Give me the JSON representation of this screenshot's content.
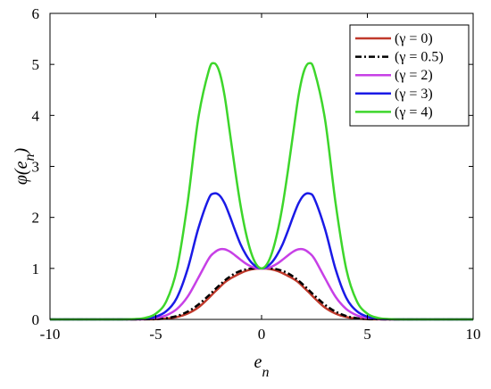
{
  "chart_data": {
    "type": "line",
    "xlabel": {
      "base": "e",
      "sub": "n"
    },
    "ylabel": {
      "prefix": "φ(",
      "base": "e",
      "sub": "n",
      "suffix": ")"
    },
    "xlim": [
      -10,
      10
    ],
    "ylim": [
      0,
      6
    ],
    "xticks": [
      -10,
      -5,
      0,
      5,
      10
    ],
    "yticks": [
      0,
      1,
      2,
      3,
      4,
      5,
      6
    ],
    "grid": false,
    "legend_position": "top-right",
    "x": [
      -10,
      -9,
      -8,
      -7,
      -6,
      -5.5,
      -5,
      -4.5,
      -4,
      -3.5,
      -3,
      -2.5,
      -2.25,
      -2,
      -1.75,
      -1.5,
      -1.25,
      -1,
      -0.75,
      -0.5,
      -0.25,
      0,
      0.25,
      0.5,
      0.75,
      1,
      1.25,
      1.5,
      1.75,
      2,
      2.25,
      2.5,
      3,
      3.5,
      4,
      4.5,
      5,
      5.5,
      6,
      7,
      8,
      9,
      10
    ],
    "series": [
      {
        "name": "(γ = 0)",
        "color": "#c0392b",
        "dash": "solid",
        "values": [
          0,
          0,
          0,
          0,
          0,
          0.002,
          0.004,
          0.017,
          0.047,
          0.113,
          0.231,
          0.419,
          0.525,
          0.624,
          0.724,
          0.796,
          0.853,
          0.905,
          0.949,
          0.978,
          0.994,
          1.0,
          0.994,
          0.978,
          0.949,
          0.905,
          0.853,
          0.796,
          0.724,
          0.624,
          0.525,
          0.419,
          0.231,
          0.113,
          0.047,
          0.017,
          0.004,
          0.002,
          0,
          0,
          0,
          0,
          0
        ]
      },
      {
        "name": "(γ = 0.5)",
        "color": "#000000",
        "dash": "dashdot",
        "values": [
          0,
          0,
          0,
          0,
          0,
          0.003,
          0.007,
          0.025,
          0.067,
          0.151,
          0.286,
          0.468,
          0.569,
          0.667,
          0.759,
          0.838,
          0.903,
          0.95,
          0.981,
          0.997,
          1.002,
          1.0,
          1.002,
          0.997,
          0.981,
          0.95,
          0.903,
          0.838,
          0.759,
          0.667,
          0.569,
          0.468,
          0.286,
          0.151,
          0.067,
          0.025,
          0.007,
          0.003,
          0,
          0,
          0,
          0,
          0
        ]
      },
      {
        "name": "(γ = 2)",
        "color": "#c740e6",
        "dash": "solid",
        "values": [
          0,
          0,
          0,
          0,
          0.002,
          0.009,
          0.028,
          0.081,
          0.204,
          0.442,
          0.808,
          1.189,
          1.305,
          1.369,
          1.375,
          1.331,
          1.256,
          1.173,
          1.096,
          1.038,
          1.003,
          1.0,
          1.003,
          1.038,
          1.096,
          1.173,
          1.256,
          1.331,
          1.375,
          1.369,
          1.305,
          1.189,
          0.808,
          0.442,
          0.204,
          0.081,
          0.028,
          0.009,
          0.002,
          0,
          0,
          0,
          0
        ]
      },
      {
        "name": "(γ = 3)",
        "color": "#1a1ae6",
        "dash": "solid",
        "values": [
          0,
          0,
          0,
          0,
          0.004,
          0.015,
          0.053,
          0.162,
          0.426,
          0.981,
          1.769,
          2.364,
          2.469,
          2.436,
          2.279,
          2.025,
          1.742,
          1.479,
          1.277,
          1.125,
          1.034,
          1.0,
          1.034,
          1.125,
          1.277,
          1.479,
          1.742,
          2.025,
          2.279,
          2.436,
          2.469,
          2.364,
          1.769,
          0.981,
          0.426,
          0.162,
          0.053,
          0.015,
          0.004,
          0,
          0,
          0,
          0
        ]
      },
      {
        "name": "(γ = 4)",
        "color": "#3dd62b",
        "dash": "solid",
        "values": [
          0,
          0,
          0,
          0,
          0.007,
          0.03,
          0.112,
          0.359,
          0.993,
          2.274,
          3.919,
          4.871,
          5.022,
          4.862,
          4.392,
          3.669,
          2.927,
          2.25,
          1.711,
          1.316,
          1.078,
          1.0,
          1.078,
          1.316,
          1.711,
          2.25,
          2.927,
          3.669,
          4.392,
          4.862,
          5.022,
          4.871,
          3.919,
          2.274,
          0.993,
          0.359,
          0.112,
          0.03,
          0.007,
          0,
          0,
          0,
          0
        ]
      }
    ]
  }
}
